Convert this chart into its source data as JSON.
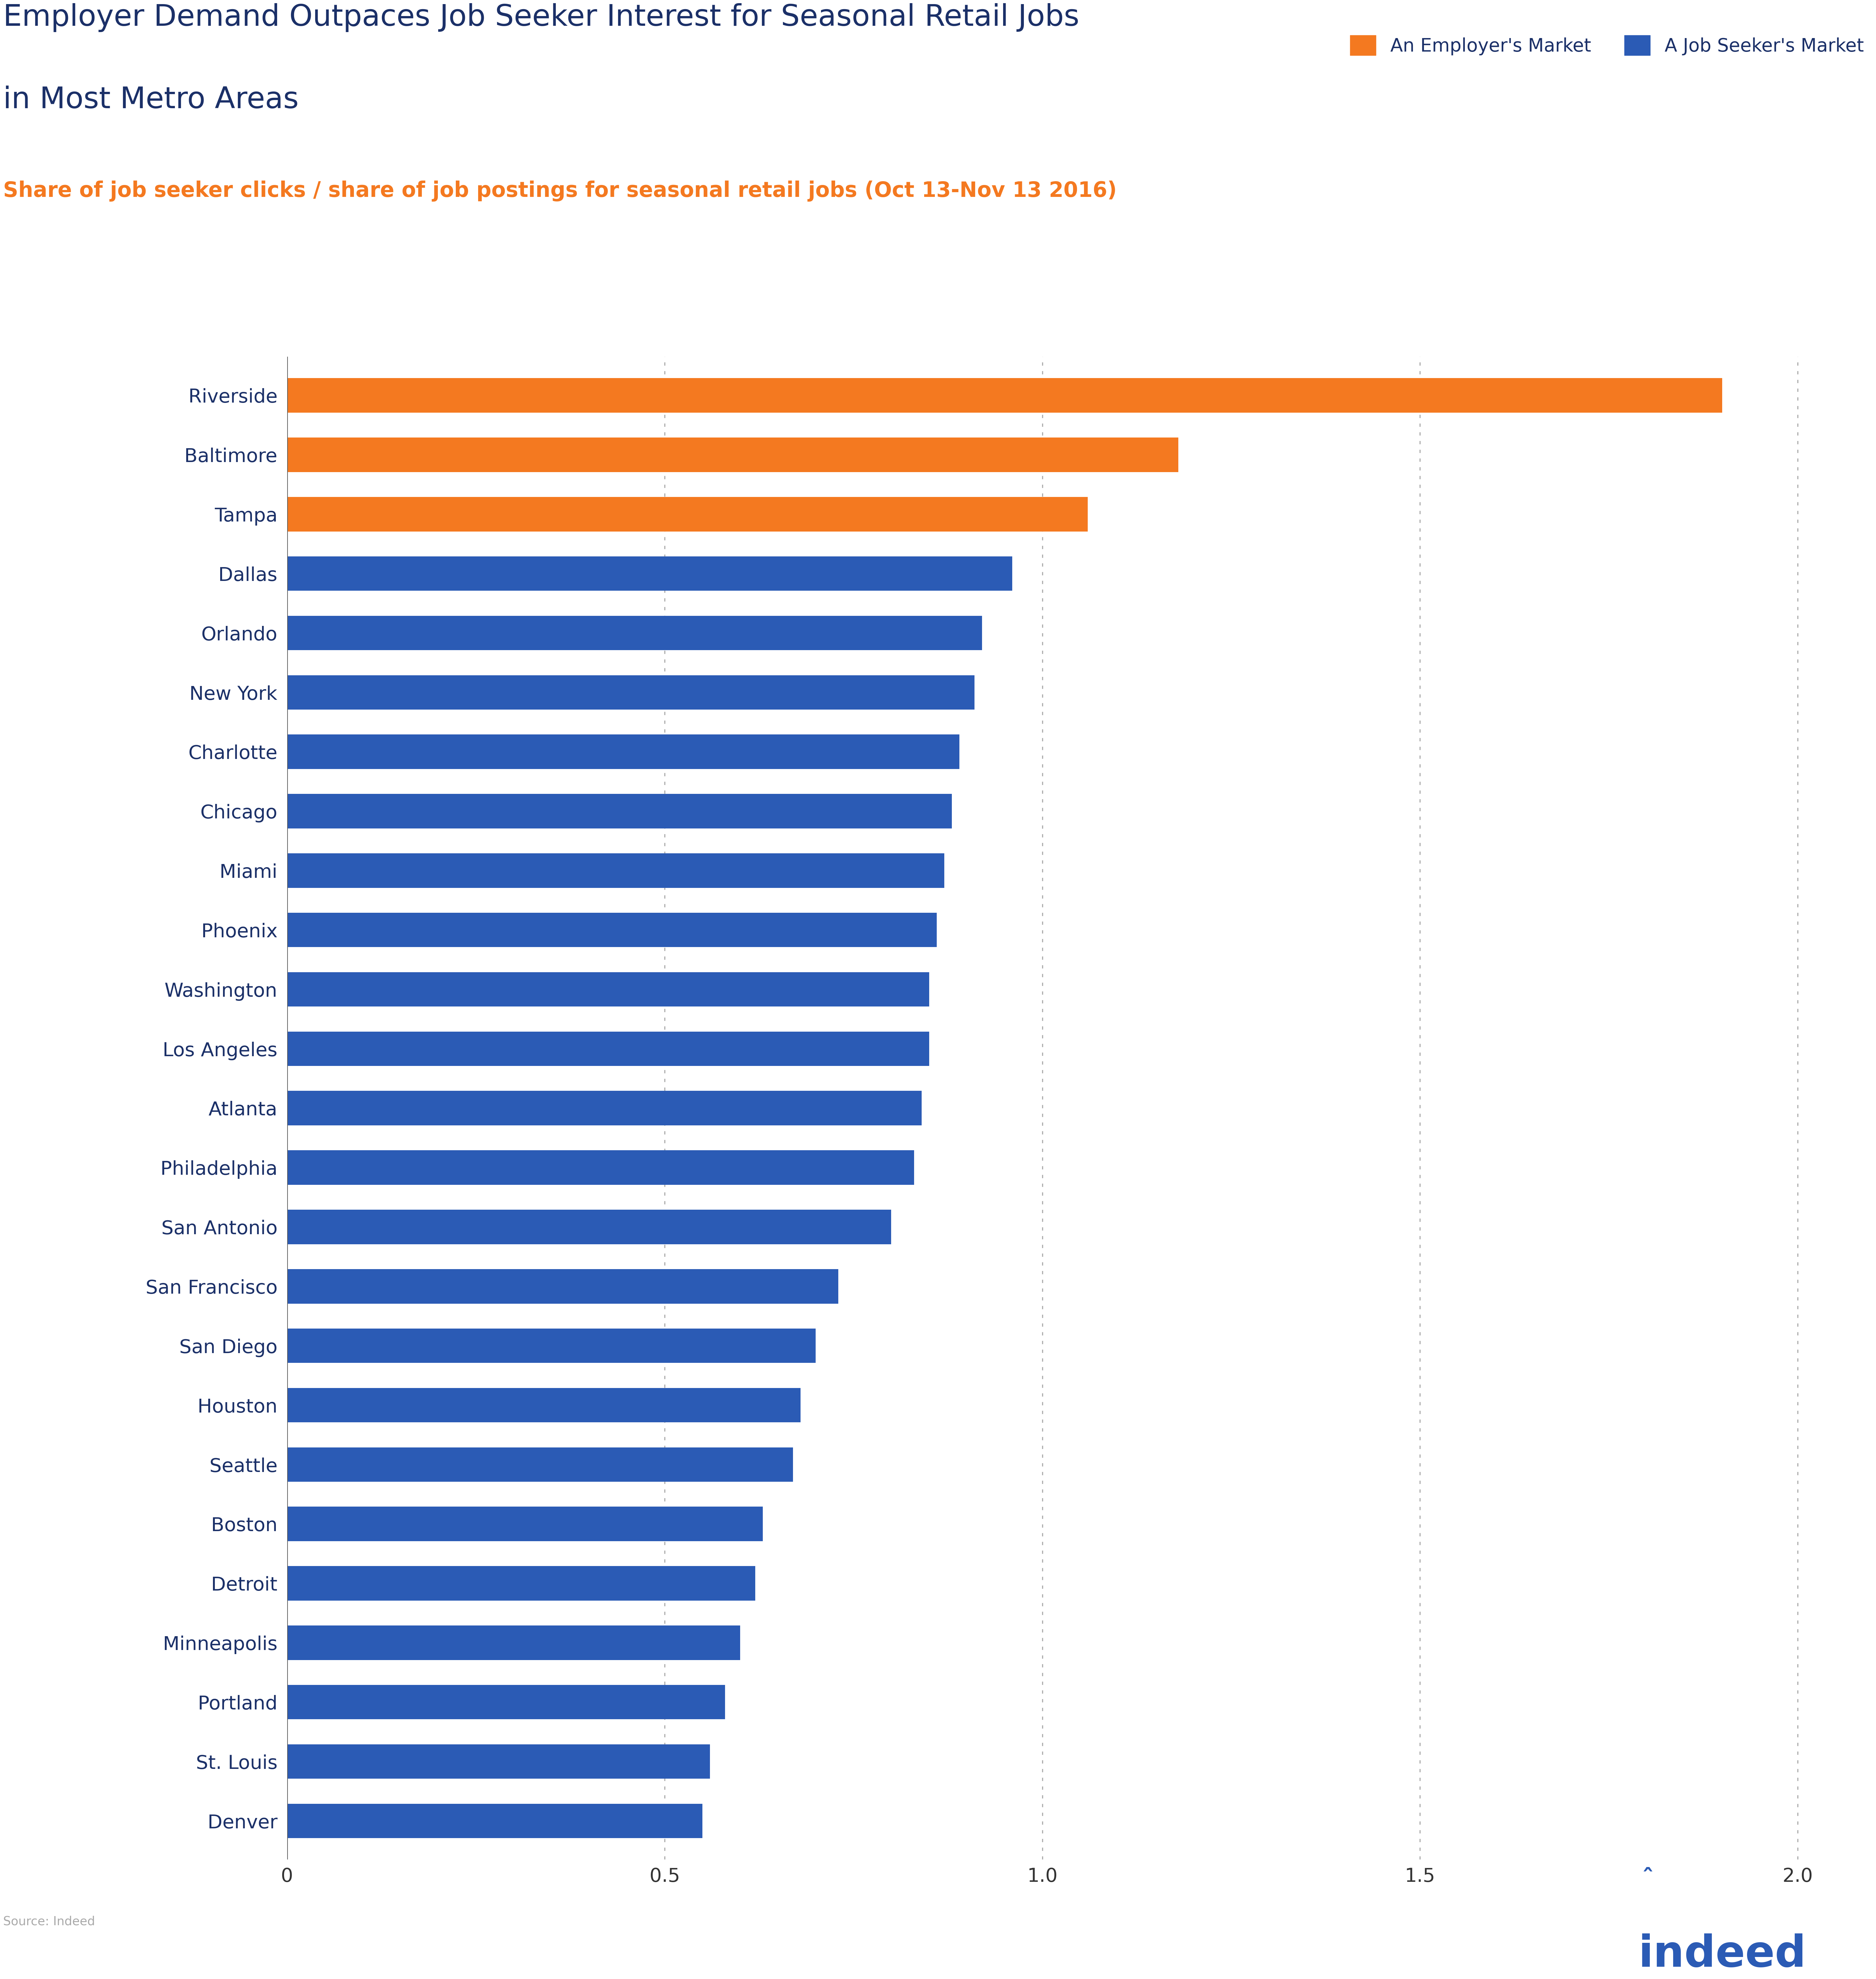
{
  "title_line1": "Employer Demand Outpaces Job Seeker Interest for Seasonal Retail Jobs",
  "title_line2": "in Most Metro Areas",
  "subtitle": "Share of job seeker clicks / share of job postings for seasonal retail jobs (Oct 13-Nov 13 2016)",
  "source": "Source: Indeed",
  "categories": [
    "Riverside",
    "Baltimore",
    "Tampa",
    "Dallas",
    "Orlando",
    "New York",
    "Charlotte",
    "Chicago",
    "Miami",
    "Phoenix",
    "Washington",
    "Los Angeles",
    "Atlanta",
    "Philadelphia",
    "San Antonio",
    "San Francisco",
    "San Diego",
    "Houston",
    "Seattle",
    "Boston",
    "Detroit",
    "Minneapolis",
    "Portland",
    "St. Louis",
    "Denver"
  ],
  "values": [
    1.9,
    1.18,
    1.06,
    0.96,
    0.92,
    0.91,
    0.89,
    0.88,
    0.87,
    0.86,
    0.85,
    0.85,
    0.84,
    0.83,
    0.8,
    0.73,
    0.7,
    0.68,
    0.67,
    0.63,
    0.62,
    0.6,
    0.58,
    0.56,
    0.55
  ],
  "colors": [
    "#F47920",
    "#F47920",
    "#F47920",
    "#2B5BB5",
    "#2B5BB5",
    "#2B5BB5",
    "#2B5BB5",
    "#2B5BB5",
    "#2B5BB5",
    "#2B5BB5",
    "#2B5BB5",
    "#2B5BB5",
    "#2B5BB5",
    "#2B5BB5",
    "#2B5BB5",
    "#2B5BB5",
    "#2B5BB5",
    "#2B5BB5",
    "#2B5BB5",
    "#2B5BB5",
    "#2B5BB5",
    "#2B5BB5",
    "#2B5BB5",
    "#2B5BB5",
    "#2B5BB5"
  ],
  "title_color": "#1B3068",
  "subtitle_color": "#F47920",
  "orange_color": "#F47920",
  "blue_color": "#2B5BB5",
  "background_color": "#FFFFFF",
  "xlim_max": 2.1,
  "xticks": [
    0,
    0.5,
    1.0,
    1.5,
    2.0
  ],
  "xtick_labels": [
    "0",
    "0.5",
    "1.0",
    "1.5",
    "2.0"
  ],
  "legend_employer": "An Employer's Market",
  "legend_jobseeker": "A Job Seeker's Market",
  "indeed_color": "#2B5BB5",
  "source_text": "Source: Indeed",
  "grid_color": "#AAAAAA",
  "axis_color": "#555555"
}
